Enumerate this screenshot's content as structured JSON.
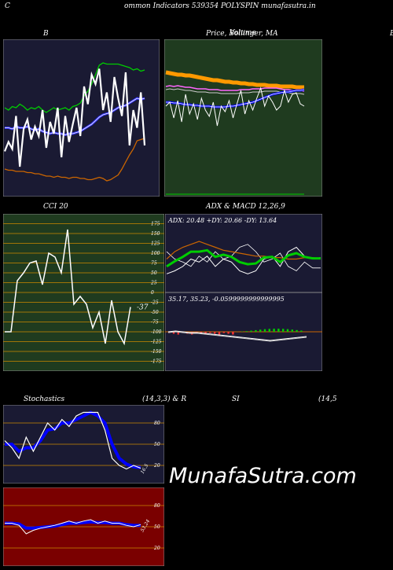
{
  "header": {
    "c_letter": "C",
    "title": "ommon Indicators 539354 POLYSPIN munafasutra.in"
  },
  "labels": {
    "b": "B",
    "price_ma": "Price, Bollinger, MA",
    "volume": "Volume",
    "right_b": "B",
    "cci": "CCI 20",
    "adx_macd": "ADX & MACD 12,26,9",
    "adx_values": "ADX: 20.48 +DY: 20.66 -DY: 13.64",
    "macd_values": "35.17, 35.23, -0.0599999999999995",
    "stoch_a": "Stochastics",
    "stoch_b": "(14,3,3) & R",
    "stoch_c": "SI",
    "stoch_d": "(14,5",
    "watermark": "MunafaSutra.com"
  },
  "colors": {
    "dark_navy": "#1a1a33",
    "dark_green": "#1f3b1f",
    "dark_red": "#7a0000",
    "orange": "#cc6600",
    "blue": "#0000ff",
    "green": "#00cc00"
  },
  "chart_data": [
    {
      "type": "line",
      "title": "B",
      "series": [
        {
          "values": [
            25,
            33,
            27,
            55,
            12,
            44,
            52,
            35,
            46,
            38,
            60,
            28,
            50,
            40,
            62,
            20,
            55,
            33,
            48,
            62,
            38,
            80,
            65,
            90,
            82,
            95,
            60,
            75,
            50,
            88,
            70,
            55,
            92,
            30,
            60,
            45,
            75,
            30
          ]
        },
        {
          "values": [
            62,
            60,
            63,
            62,
            65,
            63,
            60,
            62,
            61,
            63,
            60,
            58,
            60,
            62,
            60,
            61,
            62,
            60,
            63,
            64,
            66,
            72,
            76,
            82,
            90,
            98,
            100,
            99,
            99,
            99,
            99,
            98,
            97,
            96,
            94,
            95,
            93,
            94
          ]
        },
        {
          "values": [
            45,
            45,
            44,
            46,
            45,
            45,
            46,
            44,
            43,
            44,
            42,
            41,
            40,
            41,
            40,
            40,
            39,
            40,
            40,
            41,
            42,
            44,
            46,
            48,
            51,
            54,
            56,
            57,
            58,
            60,
            62,
            63,
            64,
            66,
            68,
            70,
            69,
            70
          ]
        },
        {
          "values": [
            10,
            9,
            9,
            8,
            8,
            8,
            7,
            7,
            6,
            6,
            5,
            4,
            4,
            3,
            4,
            3,
            3,
            2,
            3,
            3,
            2,
            2,
            1,
            1,
            2,
            3,
            2,
            0,
            1,
            3,
            5,
            10,
            16,
            22,
            27,
            34,
            35,
            36
          ]
        }
      ]
    },
    {
      "type": "line",
      "title": "Price, Bollinger, MA",
      "series": [
        {
          "values": [
            55,
            60,
            40,
            62,
            35,
            70,
            45,
            58,
            38,
            65,
            50,
            42,
            60,
            30,
            55,
            48,
            62,
            40,
            58,
            75,
            45,
            62,
            50,
            65,
            78,
            55,
            68,
            60,
            50,
            55,
            75,
            60,
            70,
            72,
            58,
            55
          ]
        },
        {
          "values": [
            98,
            97,
            96,
            95,
            95,
            94,
            94,
            93,
            92,
            91,
            90,
            89,
            88,
            88,
            87,
            86,
            86,
            85,
            85,
            84,
            84,
            83,
            83,
            82,
            82,
            82,
            81,
            81,
            81,
            80,
            80,
            80,
            80,
            79,
            79,
            79
          ]
        },
        {
          "values": [
            80,
            81,
            80,
            81,
            80,
            79,
            79,
            78,
            77,
            77,
            77,
            76,
            76,
            76,
            75,
            75,
            75,
            75,
            75,
            76,
            76,
            76,
            77,
            77,
            77,
            78,
            78,
            78,
            78,
            77,
            76,
            76,
            75,
            75,
            75,
            74
          ]
        },
        {
          "values": [
            60,
            60,
            59,
            59,
            58,
            57,
            57,
            56,
            56,
            55,
            55,
            55,
            54,
            54,
            54,
            54,
            55,
            55,
            56,
            57,
            58,
            59,
            60,
            62,
            64,
            66,
            68,
            70,
            71,
            72,
            73,
            73,
            74,
            75,
            75,
            76
          ]
        }
      ]
    },
    {
      "type": "line",
      "title": "CCI 20",
      "yticks": [
        175,
        150,
        125,
        100,
        75,
        50,
        25,
        0,
        -25,
        -50,
        -75,
        -100,
        -125,
        -150,
        -175
      ],
      "ylim": [
        -190,
        190
      ],
      "last_label": "-37",
      "series": [
        {
          "values": [
            -100,
            -100,
            30,
            50,
            75,
            80,
            20,
            100,
            90,
            50,
            160,
            -30,
            -10,
            -30,
            -90,
            -50,
            -130,
            -20,
            -100,
            -130,
            -37
          ]
        }
      ]
    },
    {
      "type": "line",
      "title": "ADX & MACD 12,26,9",
      "series": [
        {
          "name": "ADX",
          "values": [
            20,
            25,
            28,
            30,
            32,
            30,
            28,
            26,
            25,
            24,
            23,
            22,
            22,
            21,
            21,
            20,
            20,
            21,
            21,
            20
          ]
        },
        {
          "name": "+DY",
          "values": [
            10,
            12,
            15,
            20,
            18,
            22,
            15,
            20,
            18,
            12,
            10,
            12,
            20,
            22,
            15,
            25,
            28,
            22,
            20,
            21
          ]
        },
        {
          "name": "-DY",
          "values": [
            25,
            20,
            18,
            15,
            22,
            18,
            25,
            20,
            22,
            28,
            30,
            25,
            18,
            20,
            24,
            15,
            12,
            18,
            14,
            14
          ]
        }
      ]
    },
    {
      "type": "line",
      "title": "Stochastics (14,3,3)",
      "yticks": [
        80,
        50,
        20
      ],
      "last_label": "16.5",
      "series": [
        {
          "values": [
            55,
            45,
            30,
            60,
            40,
            60,
            80,
            70,
            85,
            75,
            90,
            95,
            95,
            95,
            70,
            30,
            20,
            15,
            20,
            16
          ]
        },
        {
          "values": [
            50,
            50,
            40,
            45,
            45,
            55,
            70,
            72,
            80,
            80,
            85,
            90,
            95,
            90,
            80,
            50,
            30,
            22,
            18,
            17
          ]
        }
      ]
    },
    {
      "type": "line",
      "title": "RSI (14,5",
      "yticks": [
        80,
        50,
        20
      ],
      "last_label": "53.24",
      "series": [
        {
          "values": [
            55,
            55,
            52,
            40,
            45,
            48,
            50,
            52,
            55,
            58,
            55,
            58,
            60,
            55,
            58,
            55,
            55,
            52,
            50,
            53
          ]
        },
        {
          "values": [
            55,
            55,
            54,
            48,
            48,
            49,
            50,
            51,
            53,
            55,
            55,
            56,
            57,
            56,
            56,
            55,
            55,
            53,
            52,
            52
          ]
        }
      ]
    }
  ]
}
